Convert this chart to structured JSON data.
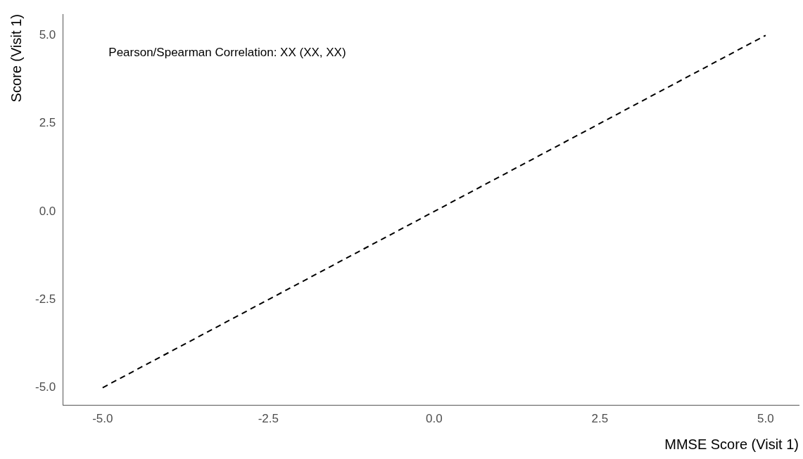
{
  "chart_data": {
    "type": "line",
    "xlabel": "MMSE Score (Visit 1)",
    "ylabel": "Score (Visit 1)",
    "annotations": [
      "Pearson/Spearman Correlation: XX (XX, XX)"
    ],
    "series": [
      {
        "color": "#000000",
        "x": [
          -5,
          5
        ],
        "values": [
          -5,
          5
        ]
      }
    ],
    "xlim": [
      -5.6,
      5.5
    ],
    "ylim": [
      -5.5,
      5.6
    ],
    "xticks": [
      {
        "value": -5,
        "label": "-5.0"
      },
      {
        "value": -2.5,
        "label": "-2.5"
      },
      {
        "value": 0,
        "label": "0.0"
      },
      {
        "value": 2.5,
        "label": "2.5"
      },
      {
        "value": 5,
        "label": "5.0"
      }
    ],
    "yticks": [
      {
        "value": -5,
        "label": "-5.0"
      },
      {
        "value": -2.5,
        "label": "-2.5"
      },
      {
        "value": 0,
        "label": "0.0"
      },
      {
        "value": 2.5,
        "label": "2.5"
      },
      {
        "value": 5,
        "label": "5.0"
      }
    ],
    "grid": false,
    "legend": false,
    "marker": "none",
    "line_style": "dashed"
  }
}
